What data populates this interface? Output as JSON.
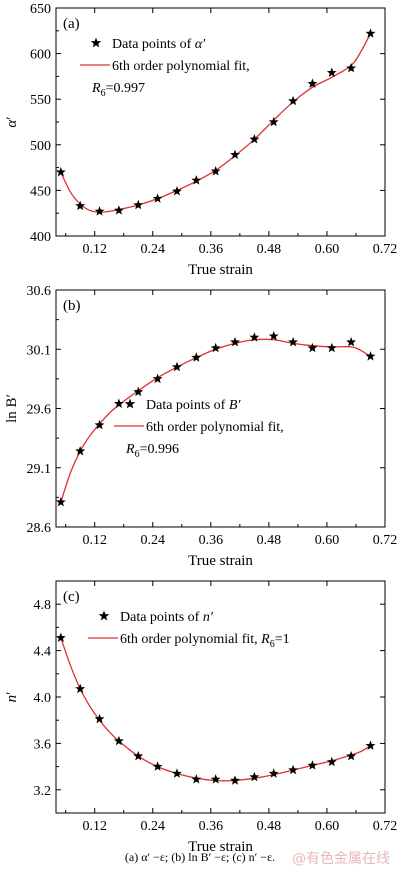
{
  "chart_data": [
    {
      "type": "scatter",
      "panel_label": "(a)",
      "xlabel": "True strain",
      "ylabel_main": "α",
      "ylabel_prime": "′",
      "xlim": [
        0.04,
        0.72
      ],
      "ylim": [
        400,
        650
      ],
      "xticks": [
        0.12,
        0.24,
        0.36,
        0.48,
        0.6,
        0.72
      ],
      "xtick_labels": [
        "0.12",
        "0.24",
        "0.36",
        "0.48",
        "0.60",
        "0.72"
      ],
      "yticks": [
        400,
        450,
        500,
        550,
        600,
        650
      ],
      "ytick_labels": [
        "400",
        "450",
        "500",
        "550",
        "600",
        "650"
      ],
      "legend_position": "top-left",
      "legend": {
        "points_label": "Data points of α′",
        "fit_label": "6th order polynomial fit,",
        "fit_label2": "R6=0.997"
      },
      "points": {
        "x": [
          0.05,
          0.09,
          0.13,
          0.17,
          0.21,
          0.25,
          0.29,
          0.33,
          0.37,
          0.41,
          0.45,
          0.49,
          0.53,
          0.57,
          0.61,
          0.65,
          0.69
        ],
        "y": [
          470,
          433,
          427,
          428,
          434,
          441,
          449,
          461,
          471,
          489,
          506,
          525,
          548,
          567,
          579,
          584,
          622
        ]
      },
      "fit": {
        "x": [
          0.05,
          0.07,
          0.09,
          0.11,
          0.13,
          0.15,
          0.17,
          0.21,
          0.25,
          0.29,
          0.33,
          0.37,
          0.41,
          0.45,
          0.49,
          0.53,
          0.57,
          0.61,
          0.65,
          0.67,
          0.69
        ],
        "y": [
          470,
          448,
          435,
          428,
          426,
          427,
          429,
          434,
          441,
          450,
          460,
          472,
          488,
          506,
          527,
          547,
          563,
          574,
          587,
          602,
          622
        ]
      },
      "colors": {
        "points": "#000000",
        "fit": "#e03030"
      }
    },
    {
      "type": "scatter",
      "panel_label": "(b)",
      "xlabel": "True strain",
      "ylabel_main": "ln B",
      "ylabel_prime": "′",
      "xlim": [
        0.04,
        0.72
      ],
      "ylim": [
        28.6,
        30.6
      ],
      "xticks": [
        0.12,
        0.24,
        0.36,
        0.48,
        0.6,
        0.72
      ],
      "xtick_labels": [
        "0.12",
        "0.24",
        "0.36",
        "0.48",
        "0.60",
        "0.72"
      ],
      "yticks": [
        28.6,
        29.1,
        29.6,
        30.1,
        30.6
      ],
      "ytick_labels": [
        "28.6",
        "29.1",
        "29.6",
        "30.1",
        "30.6"
      ],
      "legend_position": "center",
      "legend": {
        "points_label": "Data points of B′",
        "fit_label": "6th order polynomial fit,",
        "fit_label2": "R6=0.996"
      },
      "points": {
        "x": [
          0.05,
          0.09,
          0.13,
          0.17,
          0.21,
          0.25,
          0.29,
          0.33,
          0.37,
          0.41,
          0.45,
          0.49,
          0.53,
          0.57,
          0.61,
          0.65,
          0.69
        ],
        "y": [
          28.81,
          29.24,
          29.46,
          29.64,
          29.74,
          29.85,
          29.95,
          30.03,
          30.11,
          30.16,
          30.2,
          30.21,
          30.16,
          30.11,
          30.11,
          30.16,
          30.04
        ]
      },
      "fit": {
        "x": [
          0.05,
          0.07,
          0.09,
          0.11,
          0.13,
          0.15,
          0.17,
          0.21,
          0.25,
          0.29,
          0.33,
          0.37,
          0.41,
          0.45,
          0.49,
          0.53,
          0.57,
          0.61,
          0.65,
          0.67,
          0.69
        ],
        "y": [
          28.81,
          29.06,
          29.24,
          29.37,
          29.47,
          29.56,
          29.63,
          29.75,
          29.86,
          29.95,
          30.03,
          30.1,
          30.15,
          30.18,
          30.18,
          30.15,
          30.13,
          30.12,
          30.12,
          30.09,
          30.04
        ]
      },
      "colors": {
        "points": "#000000",
        "fit": "#e03030"
      }
    },
    {
      "type": "scatter",
      "panel_label": "(c)",
      "xlabel": "True strain",
      "ylabel_main": "n",
      "ylabel_prime": "′",
      "xlim": [
        0.04,
        0.72
      ],
      "ylim": [
        3.0,
        5.0
      ],
      "xticks": [
        0.12,
        0.24,
        0.36,
        0.48,
        0.6,
        0.72
      ],
      "xtick_labels": [
        "0.12",
        "0.24",
        "0.36",
        "0.48",
        "0.60",
        "0.72"
      ],
      "yticks": [
        3.2,
        3.6,
        4.0,
        4.4,
        4.8
      ],
      "ytick_labels": [
        "3.2",
        "3.6",
        "4.0",
        "4.4",
        "4.8"
      ],
      "legend_position": "top-left",
      "legend": {
        "points_label": "Data points of n′",
        "fit_label": "6th order polynomial fit, R6=1",
        "fit_label2": ""
      },
      "points": {
        "x": [
          0.05,
          0.09,
          0.13,
          0.17,
          0.21,
          0.25,
          0.29,
          0.33,
          0.37,
          0.41,
          0.45,
          0.49,
          0.53,
          0.57,
          0.61,
          0.65,
          0.69
        ],
        "y": [
          4.51,
          4.07,
          3.81,
          3.62,
          3.49,
          3.4,
          3.34,
          3.29,
          3.29,
          3.28,
          3.31,
          3.34,
          3.37,
          3.41,
          3.44,
          3.49,
          3.58
        ]
      },
      "fit": {
        "x": [
          0.05,
          0.07,
          0.09,
          0.11,
          0.13,
          0.15,
          0.17,
          0.21,
          0.25,
          0.29,
          0.33,
          0.37,
          0.41,
          0.45,
          0.49,
          0.53,
          0.57,
          0.61,
          0.65,
          0.67,
          0.69
        ],
        "y": [
          4.51,
          4.27,
          4.07,
          3.92,
          3.8,
          3.7,
          3.62,
          3.49,
          3.4,
          3.34,
          3.3,
          3.28,
          3.28,
          3.3,
          3.33,
          3.37,
          3.41,
          3.45,
          3.5,
          3.53,
          3.58
        ]
      },
      "colors": {
        "points": "#000000",
        "fit": "#e03030"
      }
    }
  ],
  "caption": {
    "text": "(a)   α′ −ε;   (b)   ln B′ −ε;   (c)   n′ −ε."
  },
  "watermark": {
    "text": "@有色金属在线"
  }
}
